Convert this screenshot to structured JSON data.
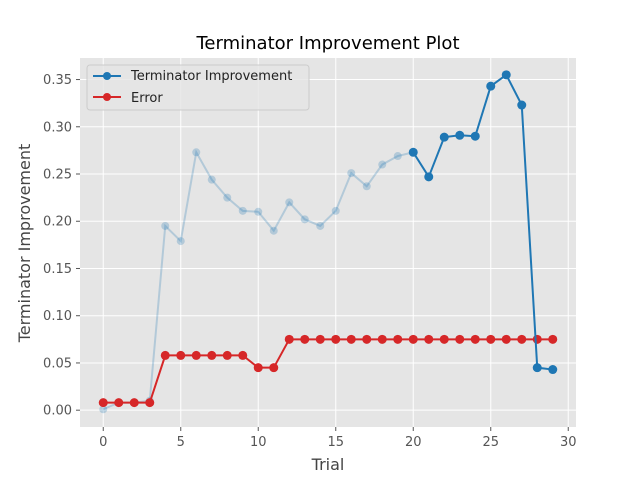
{
  "chart_data": {
    "type": "line",
    "title": "Terminator Improvement Plot",
    "xlabel": "Trial",
    "ylabel": "Terminator Improvement",
    "xlim": [
      -1.5,
      30.5
    ],
    "ylim": [
      -0.0178,
      0.3728
    ],
    "xticks": [
      0,
      5,
      10,
      15,
      20,
      25,
      30
    ],
    "yticks": [
      0.0,
      0.05,
      0.1,
      0.15,
      0.2,
      0.25,
      0.3,
      0.35
    ],
    "ytick_labels": [
      "0.00",
      "0.05",
      "0.10",
      "0.15",
      "0.20",
      "0.25",
      "0.30",
      "0.35"
    ],
    "grid": true,
    "legend_position": "top-left",
    "faded_until_trial": 20,
    "series": [
      {
        "name": "Terminator Improvement",
        "color": "#1f77b4",
        "x": [
          0,
          1,
          2,
          3,
          4,
          5,
          6,
          7,
          8,
          9,
          10,
          11,
          12,
          13,
          14,
          15,
          16,
          17,
          18,
          19,
          20,
          21,
          22,
          23,
          24,
          25,
          26,
          27,
          28,
          29
        ],
        "values": [
          0.001,
          0.008,
          0.008,
          0.01,
          0.195,
          0.179,
          0.273,
          0.244,
          0.225,
          0.211,
          0.21,
          0.19,
          0.22,
          0.202,
          0.195,
          0.211,
          0.251,
          0.237,
          0.26,
          0.269,
          0.273,
          0.247,
          0.289,
          0.291,
          0.29,
          0.343,
          0.355,
          0.323,
          0.045,
          0.043
        ]
      },
      {
        "name": "Error",
        "color": "#d62728",
        "x": [
          0,
          1,
          2,
          3,
          4,
          5,
          6,
          7,
          8,
          9,
          10,
          11,
          12,
          13,
          14,
          15,
          16,
          17,
          18,
          19,
          20,
          21,
          22,
          23,
          24,
          25,
          26,
          27,
          28,
          29
        ],
        "values": [
          0.008,
          0.008,
          0.008,
          0.008,
          0.058,
          0.058,
          0.058,
          0.058,
          0.058,
          0.058,
          0.045,
          0.045,
          0.075,
          0.075,
          0.075,
          0.075,
          0.075,
          0.075,
          0.075,
          0.075,
          0.075,
          0.075,
          0.075,
          0.075,
          0.075,
          0.075,
          0.075,
          0.075,
          0.075,
          0.075
        ]
      }
    ]
  }
}
